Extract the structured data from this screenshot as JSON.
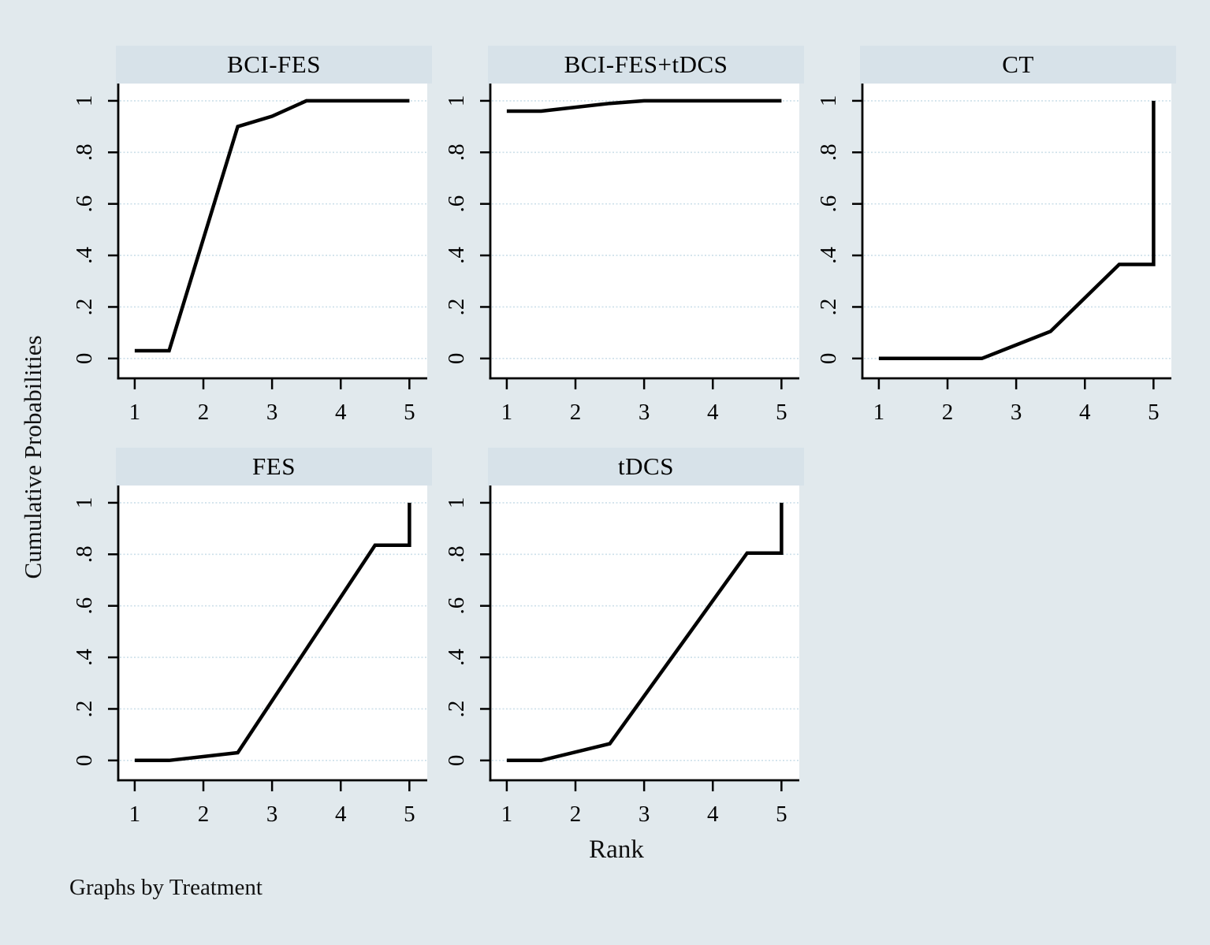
{
  "figure": {
    "y_axis_title": "Cumulative Probabilities",
    "x_axis_title": "Rank",
    "caption": "Graphs by Treatment"
  },
  "colors": {
    "background": "#e1e9ed",
    "panel_title_band": "#d7e2e9",
    "plot_background": "#ffffff",
    "gridline": "#ccdfe9",
    "axis": "#000000",
    "series_line": "#000000",
    "text": "#000000"
  },
  "chart_data": {
    "type": "line",
    "layout": "small-multiples by Treatment, 3 columns x 2 rows, bottom-right cell empty",
    "title": "",
    "xlabel": "Rank",
    "ylabel": "Cumulative Probabilities",
    "caption": "Graphs by Treatment",
    "x_ticks": [
      1,
      2,
      3,
      4,
      5
    ],
    "y_ticks": [
      0,
      0.2,
      0.4,
      0.6,
      0.8,
      1
    ],
    "y_tick_labels": [
      "0",
      ".2",
      ".4",
      ".6",
      ".8",
      "1"
    ],
    "xlim": [
      0.76,
      5.26
    ],
    "ylim": [
      -0.077,
      1.067
    ],
    "grid": "horizontal dashed gridlines at each y tick",
    "legend": "none",
    "panels": [
      {
        "title": "BCI-FES",
        "row": 0,
        "col": 0,
        "points": [
          [
            1,
            0.03
          ],
          [
            1.5,
            0.03
          ],
          [
            2.5,
            0.9
          ],
          [
            3,
            0.94
          ],
          [
            3.5,
            1
          ],
          [
            5,
            1
          ]
        ]
      },
      {
        "title": "BCI-FES+tDCS",
        "row": 0,
        "col": 1,
        "points": [
          [
            1,
            0.96
          ],
          [
            1.5,
            0.96
          ],
          [
            2.5,
            0.99
          ],
          [
            3,
            1
          ],
          [
            5,
            1
          ]
        ]
      },
      {
        "title": "CT",
        "row": 0,
        "col": 2,
        "points": [
          [
            1,
            0
          ],
          [
            2.5,
            0
          ],
          [
            3.5,
            0.105
          ],
          [
            4.5,
            0.365
          ],
          [
            5,
            0.365
          ],
          [
            5,
            1
          ]
        ]
      },
      {
        "title": "FES",
        "row": 1,
        "col": 0,
        "points": [
          [
            1,
            0
          ],
          [
            1.5,
            0
          ],
          [
            2.5,
            0.03
          ],
          [
            4.5,
            0.835
          ],
          [
            5,
            0.835
          ],
          [
            5,
            1
          ]
        ]
      },
      {
        "title": "tDCS",
        "row": 1,
        "col": 1,
        "points": [
          [
            1,
            0
          ],
          [
            1.5,
            0
          ],
          [
            2.5,
            0.065
          ],
          [
            4.5,
            0.805
          ],
          [
            5,
            0.805
          ],
          [
            5,
            1
          ]
        ]
      }
    ]
  }
}
